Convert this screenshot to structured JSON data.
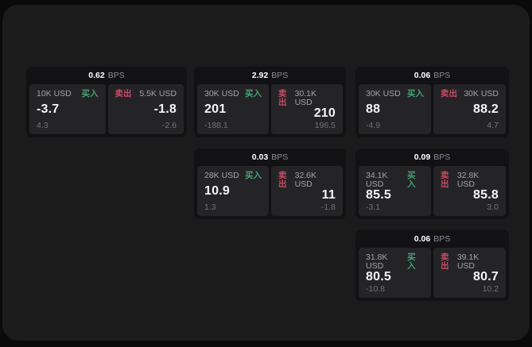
{
  "labels": {
    "bps": "BPS",
    "buy": "买入",
    "sell": "卖出"
  },
  "colors": {
    "buy_green": "#46a36f",
    "sell_red": "#c94a64",
    "surface_bg": "#1b1b1c",
    "card_bg": "#121214",
    "tile_bg": "#242427"
  },
  "cards": [
    {
      "bps": "0.62",
      "buy": {
        "size": "10K USD",
        "value": "-3.7",
        "sub": "4.3"
      },
      "sell": {
        "size": "5.5K USD",
        "value": "-1.8",
        "sub": "-2.6"
      }
    },
    {
      "bps": "2.92",
      "buy": {
        "size": "30K USD",
        "value": "201",
        "sub": "-188.1"
      },
      "sell": {
        "size": "30.1K USD",
        "value": "210",
        "sub": "196.5"
      }
    },
    {
      "bps": "0.06",
      "buy": {
        "size": "30K USD",
        "value": "88",
        "sub": "-4.9"
      },
      "sell": {
        "size": "30K USD",
        "value": "88.2",
        "sub": "4.7"
      }
    },
    {
      "bps": "0.03",
      "buy": {
        "size": "28K USD",
        "value": "10.9",
        "sub": "1.3"
      },
      "sell": {
        "size": "32.6K USD",
        "value": "11",
        "sub": "-1.8"
      }
    },
    {
      "bps": "0.09",
      "buy": {
        "size": "34.1K USD",
        "value": "85.5",
        "sub": "-3.1"
      },
      "sell": {
        "size": "32.8K USD",
        "value": "85.8",
        "sub": "3.0"
      }
    },
    {
      "bps": "0.06",
      "buy": {
        "size": "31.8K USD",
        "value": "80.5",
        "sub": "-10.8"
      },
      "sell": {
        "size": "39.1K USD",
        "value": "80.7",
        "sub": "10.2"
      }
    }
  ]
}
